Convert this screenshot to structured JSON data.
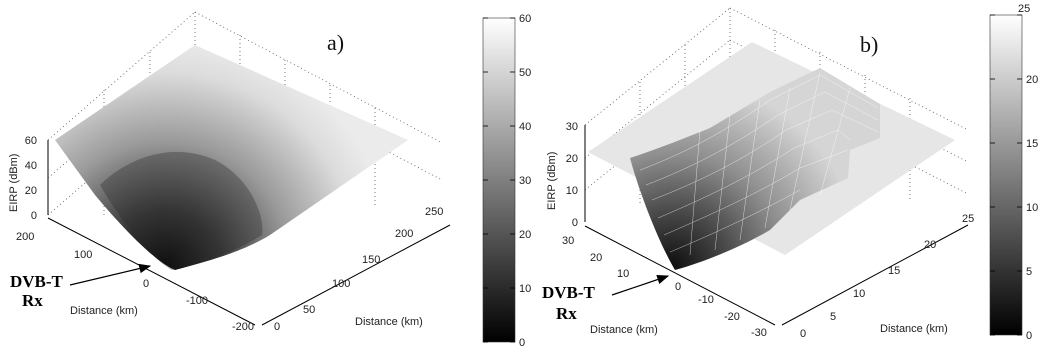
{
  "chart_data": [
    {
      "type": "surface",
      "panel_label": "a)",
      "zlabel": "EIRP (dBm)",
      "xlabel": "Distance (km)",
      "ylabel": "Distance (km)",
      "z_ticks": [
        "0",
        "20",
        "40",
        "60"
      ],
      "x_ticks": [
        "0",
        "50",
        "100",
        "150",
        "200",
        "250"
      ],
      "y_ticks": [
        "200",
        "100",
        "0",
        "-100",
        "-200"
      ],
      "zlim": [
        0,
        60
      ],
      "xlim": [
        0,
        250
      ],
      "ylim": [
        -200,
        200
      ],
      "colorbar": {
        "ticks": [
          "0",
          "10",
          "20",
          "30",
          "40",
          "50",
          "60"
        ],
        "range": [
          0,
          60
        ],
        "colormap": "gray"
      },
      "annotation": {
        "line1": "DVB-T",
        "line2": "Rx"
      }
    },
    {
      "type": "surface",
      "panel_label": "b)",
      "zlabel": "EIRP (dBm)",
      "xlabel": "Distance (km)",
      "ylabel": "Distance (km)",
      "z_ticks": [
        "0",
        "10",
        "20",
        "30"
      ],
      "x_ticks": [
        "0",
        "5",
        "10",
        "15",
        "20",
        "25"
      ],
      "y_ticks": [
        "30",
        "20",
        "10",
        "0",
        "-10",
        "-20",
        "-30"
      ],
      "zlim": [
        0,
        30
      ],
      "xlim": [
        0,
        25
      ],
      "ylim": [
        -30,
        30
      ],
      "colorbar": {
        "ticks": [
          "0",
          "5",
          "10",
          "15",
          "20",
          "25"
        ],
        "range": [
          0,
          25
        ],
        "colormap": "gray"
      },
      "annotation": {
        "line1": "DVB-T",
        "line2": "Rx"
      }
    }
  ]
}
